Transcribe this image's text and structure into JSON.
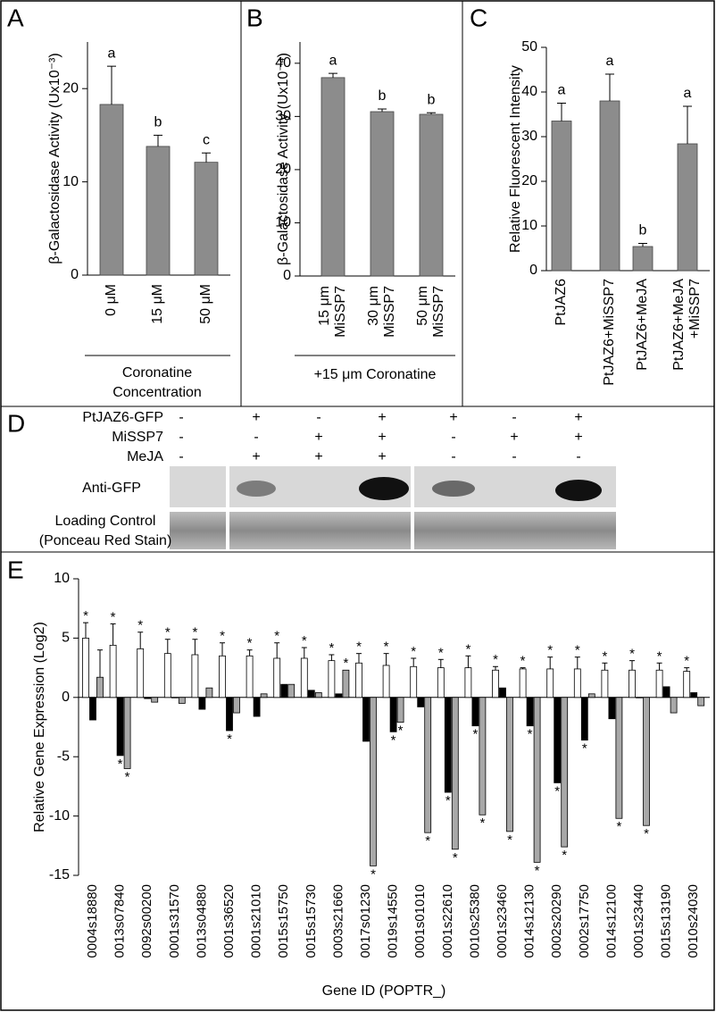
{
  "chart_data": [
    {
      "type": "bar",
      "panel": "A",
      "ylabel": "β-Galactosidase Activity (Ux10⁻³)",
      "categories": [
        "0 μM",
        "15 μM",
        "50 μM"
      ],
      "values": [
        18.3,
        13.8,
        12.1
      ],
      "errors": [
        4.1,
        1.2,
        1.0
      ],
      "letters": [
        "a",
        "b",
        "c"
      ],
      "color": "#8c8c8c",
      "ylim": [
        0,
        25
      ],
      "yticks": [
        0,
        10,
        20
      ],
      "xlabel": [
        "Coronatine",
        "Concentration"
      ]
    },
    {
      "type": "bar",
      "panel": "B",
      "ylabel": "β-Galactosidase Activity (Ux10⁻⁴)",
      "categories": [
        [
          "15 μm",
          "MiSSP7"
        ],
        [
          "30 μm",
          "MiSSP7"
        ],
        [
          "50 μm",
          "MiSSP7"
        ]
      ],
      "values": [
        37.3,
        30.9,
        30.4
      ],
      "errors": [
        0.8,
        0.5,
        0.3
      ],
      "letters": [
        "a",
        "b",
        "b"
      ],
      "color": "#8c8c8c",
      "ylim": [
        0,
        44
      ],
      "yticks": [
        0,
        10,
        20,
        30,
        40
      ],
      "xlabel": [
        "+15 μm Coronatine"
      ]
    },
    {
      "type": "bar",
      "panel": "C",
      "ylabel": "Relative Fluorescent Intensity",
      "categories": [
        "PtJAZ6",
        "PtJAZ6+MiSSP7",
        "PtJAZ6+MeJA",
        [
          "PtJAZ6+MeJA",
          "+MiSSP7"
        ]
      ],
      "values": [
        33.5,
        38,
        5.4,
        28.4
      ],
      "errors": [
        4,
        6,
        0.7,
        8.4
      ],
      "letters": [
        "a",
        "a",
        "b",
        "a"
      ],
      "color": "#8c8c8c",
      "ylim": [
        0,
        50
      ],
      "yticks": [
        0,
        10,
        20,
        30,
        40,
        50
      ]
    },
    {
      "type": "bar",
      "panel": "E",
      "ylabel": "Relative Gene Expression (Log2)",
      "xlabel": "Gene ID (POPTR_)",
      "categories": [
        "0004s18880",
        "0013s07840",
        "0092s00200",
        "0001s31570",
        "0013s04880",
        "0001s36520",
        "0001s21010",
        "0015s15750",
        "0015s15730",
        "0003s21660",
        "0017s01230",
        "0019s14550",
        "0001s01010",
        "0001s22610",
        "0010s25380",
        "0001s23460",
        "0014s12130",
        "0002s20290",
        "0002s17750",
        "0014s12100",
        "0001s23440",
        "0015s13190",
        "0010s24030"
      ],
      "series": [
        {
          "color": "#ffffff",
          "values": [
            5.0,
            4.4,
            4.1,
            3.7,
            3.6,
            3.5,
            3.5,
            3.3,
            3.3,
            3.1,
            2.9,
            2.7,
            2.6,
            2.5,
            2.5,
            2.3,
            2.4,
            2.4,
            2.4,
            2.3,
            2.3,
            2.3,
            2.2
          ],
          "errors": [
            1.3,
            1.8,
            1.4,
            1.2,
            1.3,
            1.1,
            0.5,
            1.3,
            0.9,
            0.5,
            0.8,
            1.0,
            0.7,
            0.7,
            1.0,
            0.3,
            0.1,
            1.0,
            1.0,
            0.6,
            0.8,
            0.6,
            0.3
          ],
          "significance": [
            "*",
            "*",
            "*",
            "*",
            "*",
            "*",
            "*",
            "*",
            "*",
            "*",
            "*",
            "*",
            "*",
            "*",
            "*",
            "*",
            "*",
            "*",
            "*",
            "*",
            "*",
            "*",
            "*"
          ]
        },
        {
          "color": "#000000",
          "values": [
            -1.9,
            -4.9,
            -0.1,
            0,
            -1.0,
            -2.8,
            -1.6,
            1.1,
            0.6,
            0.3,
            -3.7,
            -2.9,
            -0.8,
            -8.0,
            -2.4,
            0.8,
            -2.4,
            -7.2,
            -3.6,
            -1.8,
            0,
            0.9,
            0.4
          ],
          "significance": [
            null,
            "*",
            null,
            null,
            null,
            "*",
            null,
            null,
            null,
            null,
            null,
            "*",
            null,
            "*",
            "*",
            null,
            "*",
            "*",
            "*",
            null,
            null,
            null,
            null
          ]
        },
        {
          "color": "#a8a8a8",
          "values": [
            1.7,
            -6.0,
            -0.4,
            -0.5,
            0.8,
            -1.3,
            0.3,
            1.1,
            0.4,
            2.3,
            -14.2,
            -2.1,
            -11.4,
            -12.8,
            -9.9,
            -11.3,
            -13.9,
            -12.6,
            0.3,
            -10.2,
            -10.8,
            -1.3,
            -0.7
          ],
          "errors": [
            2.3,
            null,
            null,
            null,
            null,
            null,
            null,
            null,
            null,
            null,
            null,
            null,
            null,
            null,
            null,
            null,
            null,
            null,
            null,
            null,
            null,
            null,
            null
          ],
          "significance": [
            null,
            "*",
            null,
            null,
            null,
            null,
            null,
            null,
            null,
            "*",
            "*",
            "*",
            "*",
            "*",
            "*",
            "*",
            "*",
            "*",
            null,
            "*",
            "*",
            null,
            null
          ]
        }
      ],
      "ylim": [
        -15,
        10
      ],
      "yticks": [
        -15,
        -10,
        -5,
        0,
        5,
        10
      ]
    }
  ],
  "blot": {
    "panel": "D",
    "rows": [
      {
        "label": "PtJAZ6-GFP",
        "signs": [
          "-",
          "+",
          "-",
          "+",
          "+",
          "-",
          "+"
        ]
      },
      {
        "label": "MiSSP7",
        "signs": [
          "-",
          "-",
          "+",
          "+",
          "-",
          "+",
          "+"
        ]
      },
      {
        "label": "MeJA",
        "signs": [
          "-",
          "+",
          "+",
          "+",
          "-",
          "-",
          "-"
        ]
      }
    ],
    "antibody": "Anti-GFP",
    "loading": [
      "Loading Control",
      "(Ponceau Red Stain)"
    ]
  }
}
